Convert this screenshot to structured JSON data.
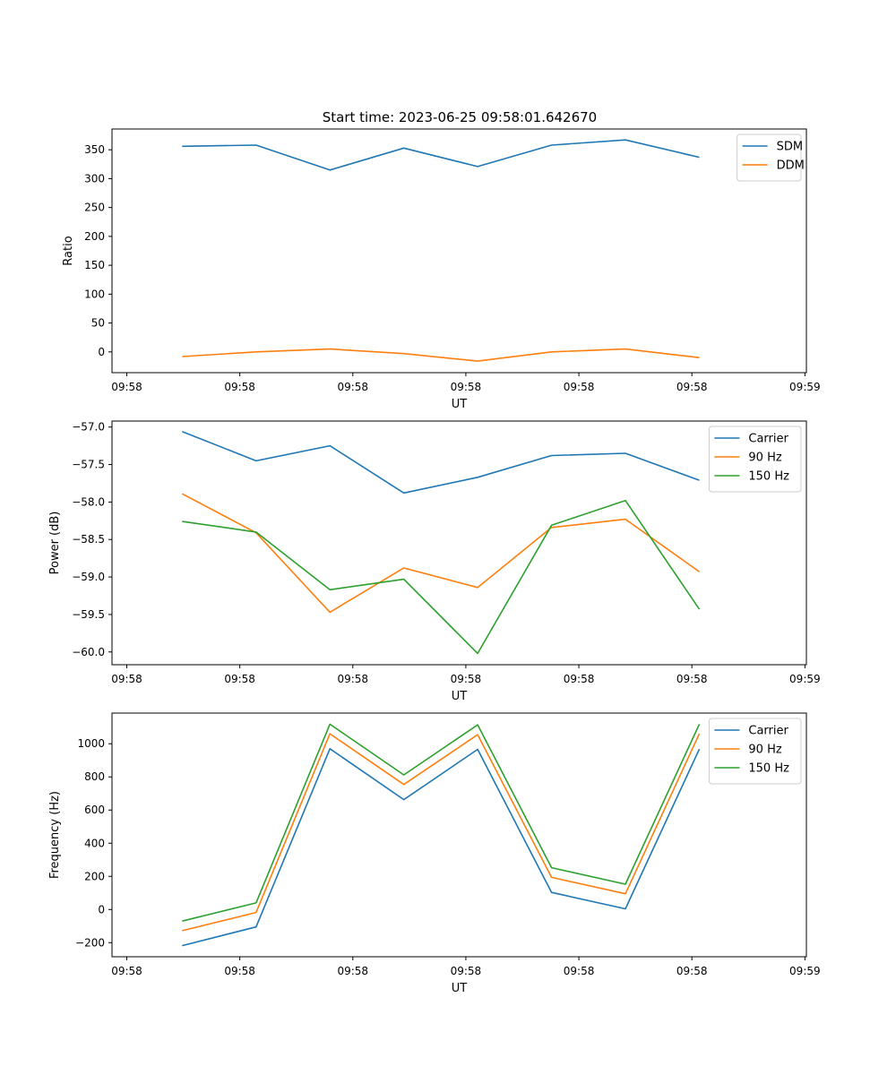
{
  "figure_title": "Start time: 2023-06-25 09:58:01.642670",
  "colors": {
    "blue": "#1f77b4",
    "orange": "#ff7f0e",
    "green": "#2ca02c"
  },
  "chart_data": [
    {
      "type": "line",
      "title": "Start time: 2023-06-25 09:58:01.642670",
      "xlabel": "UT",
      "ylabel": "Ratio",
      "x": [
        1,
        2,
        3,
        4,
        5,
        6,
        7,
        8
      ],
      "x_tick_labels": [
        "09:58",
        "09:58",
        "09:58",
        "09:58",
        "09:58",
        "09:58",
        "09:59"
      ],
      "ylim": [
        -36,
        386
      ],
      "y_ticks": [
        0,
        50,
        100,
        150,
        200,
        250,
        300,
        350
      ],
      "grid": false,
      "legend_position": "top-right",
      "series": [
        {
          "name": "SDM",
          "color": "#1f77b4",
          "values": [
            356,
            358,
            315,
            353,
            321,
            358,
            367,
            337
          ]
        },
        {
          "name": "DDM",
          "color": "#ff7f0e",
          "values": [
            -8,
            0,
            5,
            -3,
            -16,
            0,
            5,
            -10
          ]
        }
      ]
    },
    {
      "type": "line",
      "title": "",
      "xlabel": "UT",
      "ylabel": "Power (dB)",
      "x": [
        1,
        2,
        3,
        4,
        5,
        6,
        7,
        8
      ],
      "x_tick_labels": [
        "09:58",
        "09:58",
        "09:58",
        "09:58",
        "09:58",
        "09:58",
        "09:59"
      ],
      "ylim": [
        -60.17,
        -56.92
      ],
      "y_ticks": [
        -60.0,
        -59.5,
        -59.0,
        -58.5,
        -58.0,
        -57.5,
        -57.0
      ],
      "y_tick_labels": [
        "−60.0",
        "−59.5",
        "−59.0",
        "−58.5",
        "−58.0",
        "−57.5",
        "−57.0"
      ],
      "grid": false,
      "legend_position": "top-right",
      "series": [
        {
          "name": "Carrier",
          "color": "#1f77b4",
          "values": [
            -57.06,
            -57.45,
            -57.25,
            -57.88,
            -57.67,
            -57.38,
            -57.35,
            -57.71
          ]
        },
        {
          "name": "90 Hz",
          "color": "#ff7f0e",
          "values": [
            -57.89,
            -58.41,
            -59.47,
            -58.88,
            -59.14,
            -58.34,
            -58.23,
            -58.93
          ]
        },
        {
          "name": "150 Hz",
          "color": "#2ca02c",
          "values": [
            -58.26,
            -58.4,
            -59.17,
            -59.03,
            -60.02,
            -58.31,
            -57.98,
            -59.43
          ]
        }
      ]
    },
    {
      "type": "line",
      "title": "",
      "xlabel": "UT",
      "ylabel": "Frequency (Hz)",
      "x": [
        1,
        2,
        3,
        4,
        5,
        6,
        7,
        8
      ],
      "x_tick_labels": [
        "09:58",
        "09:58",
        "09:58",
        "09:58",
        "09:58",
        "09:58",
        "09:59"
      ],
      "ylim": [
        -285,
        1185
      ],
      "y_ticks": [
        -200,
        0,
        200,
        400,
        600,
        800,
        1000
      ],
      "y_tick_labels": [
        "−200",
        "0",
        "200",
        "400",
        "600",
        "800",
        "1000"
      ],
      "grid": false,
      "legend_position": "top-right",
      "series": [
        {
          "name": "Carrier",
          "color": "#1f77b4",
          "values": [
            -218,
            -105,
            970,
            663,
            966,
            103,
            4,
            968
          ]
        },
        {
          "name": "90 Hz",
          "color": "#ff7f0e",
          "values": [
            -128,
            -18,
            1060,
            754,
            1055,
            194,
            95,
            1060
          ]
        },
        {
          "name": "150 Hz",
          "color": "#2ca02c",
          "values": [
            -70,
            40,
            1118,
            812,
            1114,
            252,
            153,
            1118
          ]
        }
      ]
    }
  ]
}
